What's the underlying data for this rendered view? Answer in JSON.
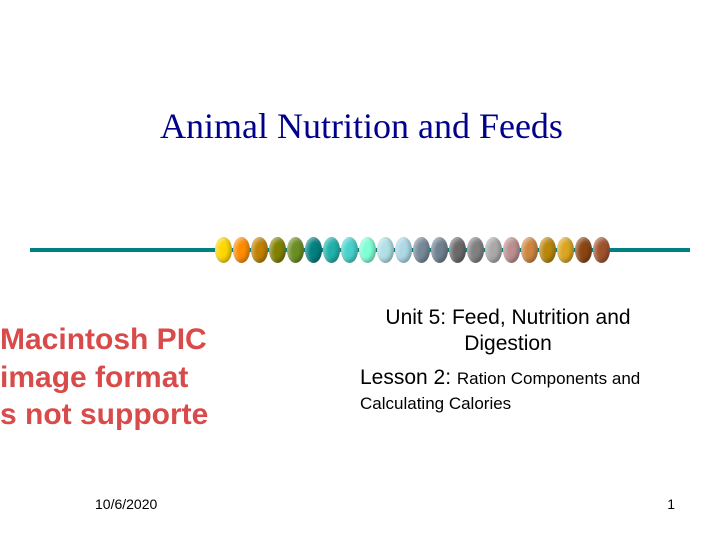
{
  "title": {
    "text": "Animal Nutrition and Feeds",
    "color": "#00008b",
    "font_size": 36
  },
  "divider": {
    "line_color": "#008080",
    "bead_colors": [
      "#ffd700",
      "#ff8c00",
      "#c08000",
      "#808000",
      "#6b8e23",
      "#008080",
      "#20b2aa",
      "#48d1cc",
      "#7fffd4",
      "#b0e0e6",
      "#add8e6",
      "#778899",
      "#708090",
      "#696969",
      "#808080",
      "#a9a9a9",
      "#bc8f8f",
      "#cd853f",
      "#b8860b",
      "#daa520",
      "#8b4513",
      "#a0522d"
    ]
  },
  "unit": {
    "text": "Unit 5: Feed, Nutrition and Digestion",
    "font_size": 21
  },
  "lesson": {
    "prefix": "Lesson 2: ",
    "detail": "Ration Components and Calculating Calories",
    "prefix_size": 21,
    "detail_size": 17
  },
  "error_image": {
    "line1": "Macintosh PIC",
    "line2": "image format",
    "line3": "s not supporte",
    "color": "#d94a4a"
  },
  "footer": {
    "date": "10/6/2020",
    "page": "1",
    "font_size": 14
  },
  "background_color": "#ffffff"
}
